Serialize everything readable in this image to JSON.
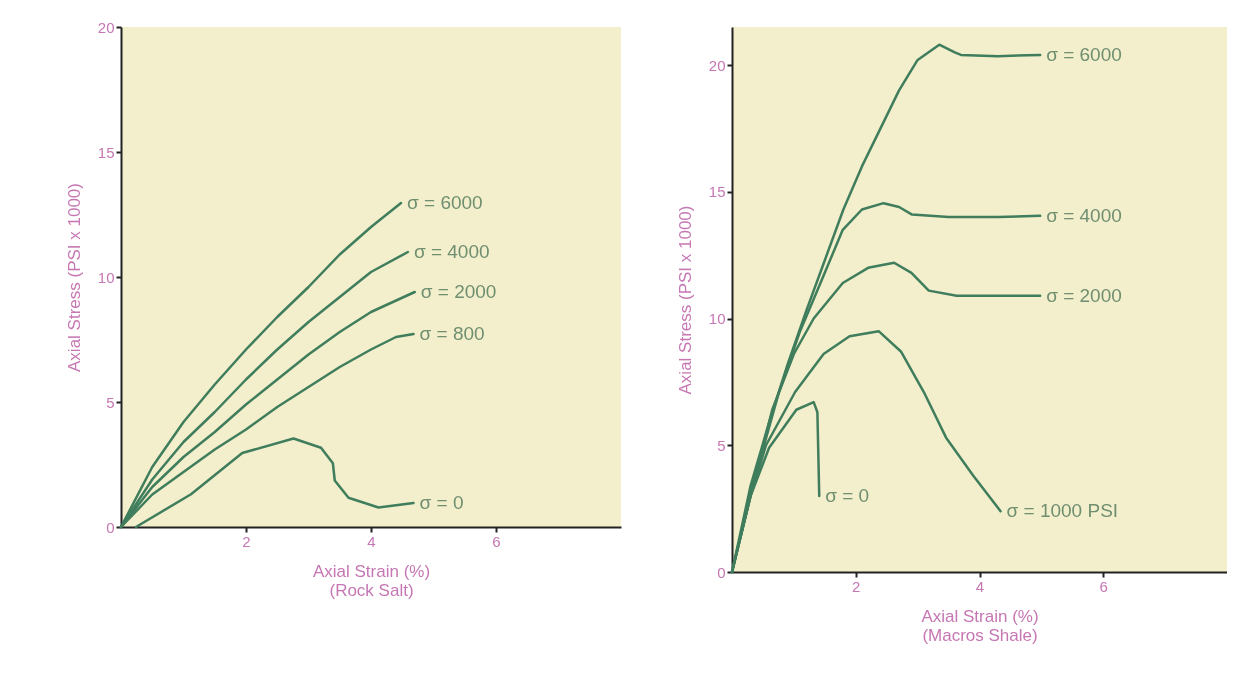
{
  "chart_data": [
    {
      "type": "line",
      "xlabel": "Axial Strain (%)\n(Rock Salt)",
      "ylabel": "Axial Stress (PSI x 1000)",
      "xlim": [
        0,
        8
      ],
      "xticks": [
        2,
        4,
        6
      ],
      "ylim": [
        0,
        20
      ],
      "yticks": [
        0,
        5,
        10,
        15,
        20
      ],
      "series": [
        {
          "name": "σ = 6000",
          "color": "#3f7d5c",
          "x": [
            0,
            0.5,
            1,
            1.5,
            2,
            2.5,
            3,
            3.5,
            4,
            4.48
          ],
          "values": [
            0,
            2.4,
            4.2,
            5.7,
            7.1,
            8.4,
            9.6,
            10.9,
            12.0,
            12.96
          ]
        },
        {
          "name": "σ = 4000",
          "color": "#3f7d5c",
          "x": [
            0,
            0.5,
            1,
            1.5,
            2,
            2.5,
            3,
            3.5,
            4,
            4.59
          ],
          "values": [
            0,
            1.9,
            3.4,
            4.6,
            5.9,
            7.1,
            8.2,
            9.2,
            10.2,
            11.0
          ]
        },
        {
          "name": "σ = 2000",
          "color": "#3f7d5c",
          "x": [
            0,
            0.5,
            1,
            1.5,
            2,
            2.5,
            3,
            3.5,
            4,
            4.7
          ],
          "values": [
            0,
            1.6,
            2.8,
            3.8,
            4.9,
            5.9,
            6.9,
            7.8,
            8.6,
            9.4
          ]
        },
        {
          "name": "σ = 800",
          "color": "#3f7d5c",
          "x": [
            0,
            0.5,
            1,
            1.5,
            2,
            2.5,
            3,
            3.5,
            4,
            4.4,
            4.68
          ],
          "values": [
            0,
            1.3,
            2.2,
            3.1,
            3.9,
            4.8,
            5.6,
            6.4,
            7.1,
            7.6,
            7.72
          ]
        },
        {
          "name": "σ = 0",
          "color": "#3f7d5c",
          "x": [
            0.24,
            1.12,
            1.94,
            2.76,
            3.2,
            3.39,
            3.42,
            3.64,
            4.12,
            4.68
          ],
          "values": [
            0,
            1.31,
            2.96,
            3.54,
            3.17,
            2.55,
            1.86,
            1.17,
            0.78,
            0.96
          ]
        }
      ]
    },
    {
      "type": "line",
      "xlabel": "Axial Strain (%)\n(Macros Shale)",
      "ylabel": "Axial Stress (PSI x 1000)",
      "xlim": [
        0,
        8
      ],
      "xticks": [
        2,
        4,
        6
      ],
      "ylim": [
        0,
        21.5
      ],
      "yticks": [
        0,
        5,
        10,
        15,
        20
      ],
      "series": [
        {
          "name": "σ = 6000",
          "color": "#3f7d5c",
          "x": [
            0,
            0.3,
            0.6,
            0.9,
            1.2,
            1.5,
            1.8,
            2.1,
            2.4,
            2.7,
            3.0,
            3.35,
            3.6,
            3.7,
            4.3,
            4.98
          ],
          "values": [
            0,
            3.4,
            5.9,
            8.2,
            10.3,
            12.3,
            14.3,
            16.0,
            17.5,
            19.0,
            20.2,
            20.8,
            20.5,
            20.4,
            20.35,
            20.4
          ]
        },
        {
          "name": "σ = 4000",
          "color": "#3f7d5c",
          "x": [
            0,
            0.3,
            0.76,
            1.1,
            1.43,
            1.79,
            2.1,
            2.45,
            2.7,
            2.91,
            3.5,
            4.3,
            4.98
          ],
          "values": [
            0,
            3.1,
            7.1,
            9.5,
            11.4,
            13.5,
            14.3,
            14.55,
            14.4,
            14.1,
            14.0,
            14.0,
            14.05
          ]
        },
        {
          "name": "σ = 2000",
          "color": "#3f7d5c",
          "x": [
            0,
            0.3,
            0.65,
            1.0,
            1.32,
            1.79,
            2.2,
            2.62,
            2.9,
            3.18,
            3.63,
            4.3,
            4.98
          ],
          "values": [
            0,
            3.0,
            6.4,
            8.6,
            10.0,
            11.4,
            12.0,
            12.2,
            11.8,
            11.1,
            10.9,
            10.9,
            10.9
          ]
        },
        {
          "name": "σ = 1000 PSI",
          "color": "#3f7d5c",
          "x": [
            0,
            0.3,
            0.55,
            1.02,
            1.48,
            1.9,
            2.37,
            2.73,
            3.1,
            3.46,
            3.9,
            4.34
          ],
          "values": [
            0,
            3.0,
            5.0,
            7.1,
            8.6,
            9.3,
            9.5,
            8.7,
            7.1,
            5.3,
            3.8,
            2.4
          ]
        },
        {
          "name": "σ = 0",
          "color": "#3f7d5c",
          "x": [
            0,
            0.3,
            0.6,
            1.04,
            1.32,
            1.38,
            1.41
          ],
          "values": [
            0,
            3.0,
            4.9,
            6.4,
            6.7,
            6.3,
            3.0
          ]
        }
      ]
    }
  ]
}
